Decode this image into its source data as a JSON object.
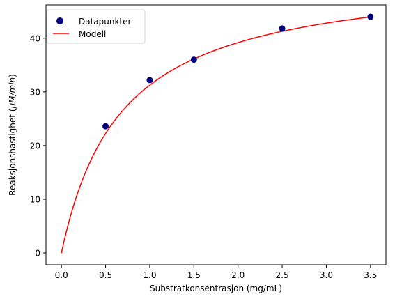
{
  "chart_data": {
    "type": "scatter",
    "title": "",
    "xlabel": "Substratkonsentrasjon (mg/mL)",
    "ylabel_main": "Reaksjonshastighet (",
    "ylabel_italic": "μM/min",
    "ylabel_close": ")",
    "xlim": [
      -0.175,
      3.675
    ],
    "ylim": [
      -2.2,
      46.2
    ],
    "xticks": [
      0.0,
      0.5,
      1.0,
      1.5,
      2.0,
      2.5,
      3.0,
      3.5
    ],
    "xtick_labels": [
      "0.0",
      "0.5",
      "1.0",
      "1.5",
      "2.0",
      "2.5",
      "3.0",
      "3.5"
    ],
    "yticks": [
      0,
      10,
      20,
      30,
      40
    ],
    "ytick_labels": [
      "0",
      "10",
      "20",
      "30",
      "40"
    ],
    "grid": false,
    "legend_position": "top-left",
    "series": [
      {
        "name": "Datapunkter",
        "kind": "scatter",
        "color": "#00007f",
        "x": [
          0.5,
          1.0,
          1.5,
          2.5,
          3.5
        ],
        "y": [
          23.6,
          32.2,
          36.0,
          41.8,
          44.0
        ]
      },
      {
        "name": "Modell",
        "kind": "line",
        "color": "#ff0000",
        "model": "michaelis-menten",
        "vmax": 52.5,
        "km": 0.68,
        "x_range": [
          0.0,
          3.5
        ]
      }
    ]
  }
}
